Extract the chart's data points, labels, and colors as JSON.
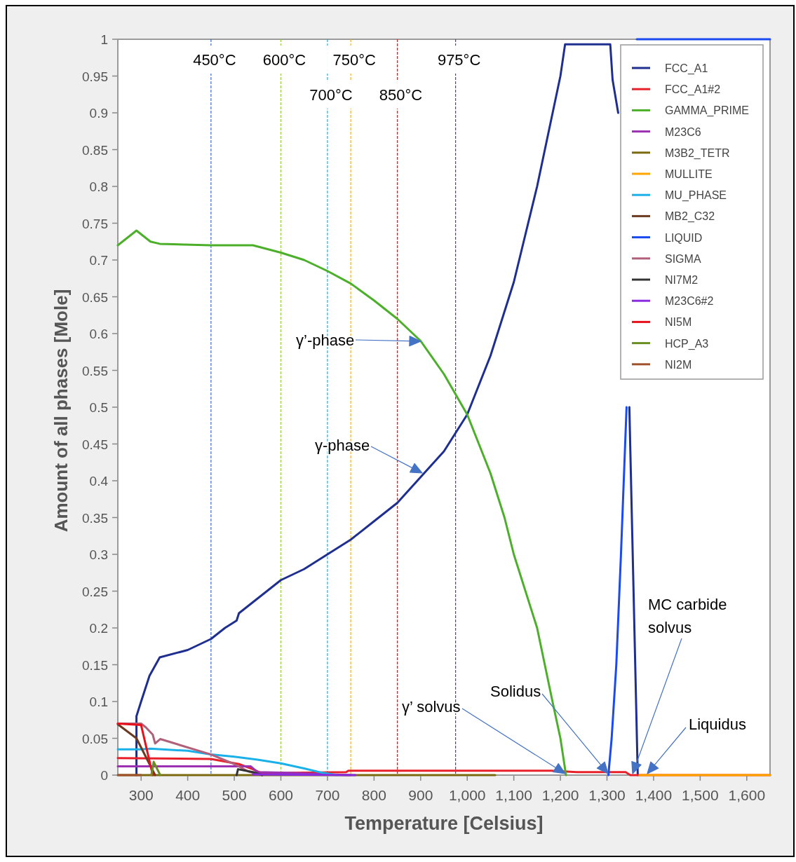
{
  "chart_data": {
    "type": "line",
    "xlabel": "Temperature [Celsius]",
    "ylabel": "Amount of all phases [Mole]",
    "xlim": [
      250,
      1650
    ],
    "ylim": [
      0,
      1
    ],
    "xticks": [
      300,
      400,
      500,
      600,
      700,
      800,
      900,
      {
        "value": 1000,
        "label": "1,000"
      },
      {
        "value": 1100,
        "label": "1,100"
      },
      {
        "value": 1200,
        "label": "1,200"
      },
      {
        "value": 1300,
        "label": "1,300"
      },
      {
        "value": 1400,
        "label": "1,400"
      },
      {
        "value": 1500,
        "label": "1,500"
      },
      {
        "value": 1600,
        "label": "1,600"
      }
    ],
    "yticks": [
      0,
      0.05,
      0.1,
      0.15,
      0.2,
      0.25,
      0.3,
      0.35,
      0.4,
      0.45,
      0.5,
      0.55,
      0.6,
      0.65,
      0.7,
      0.75,
      0.8,
      0.85,
      0.9,
      0.95,
      1
    ],
    "grid": false,
    "legend": "top right",
    "series": [
      {
        "name": "FCC_A1",
        "color": "#1f2f8f",
        "x": [
          290,
          290,
          300,
          318,
          340,
          400,
          450,
          480,
          505,
          510,
          530,
          570,
          600,
          650,
          700,
          750,
          800,
          850,
          900,
          950,
          1000,
          1050,
          1100,
          1150,
          1200,
          1210,
          1307,
          1312,
          1324,
          1330,
          1348,
          1366
        ],
        "values": [
          0,
          0.08,
          0.1,
          0.135,
          0.16,
          0.17,
          0.185,
          0.2,
          0.21,
          0.22,
          0.23,
          0.25,
          0.265,
          0.28,
          0.3,
          0.32,
          0.345,
          0.37,
          0.405,
          0.44,
          0.49,
          0.57,
          0.67,
          0.8,
          0.95,
          0.993,
          0.993,
          0.945,
          0.9,
          null,
          0.5,
          0
        ]
      },
      {
        "name": "FCC_A1#2",
        "color": "#e8202a",
        "x": [
          250,
          450,
          510,
          540,
          560,
          620,
          740,
          745,
          1180,
          1235,
          1340,
          1350,
          1650
        ],
        "values": [
          0.023,
          0.022,
          0.015,
          0.008,
          0.002,
          0.003,
          0.004,
          0.006,
          0.006,
          0.004,
          0.004,
          0,
          0
        ]
      },
      {
        "name": "GAMMA_PRIME",
        "color": "#4caf2a",
        "x": [
          250,
          290,
          320,
          340,
          450,
          530,
          540,
          600,
          650,
          700,
          750,
          800,
          850,
          900,
          950,
          1000,
          1050,
          1080,
          1100,
          1150,
          1183,
          1200,
          1212
        ],
        "values": [
          0.72,
          0.74,
          0.725,
          0.722,
          0.72,
          0.72,
          0.72,
          0.71,
          0.7,
          0.685,
          0.668,
          0.645,
          0.62,
          0.59,
          0.545,
          0.49,
          0.41,
          0.35,
          0.3,
          0.2,
          0.1,
          0.05,
          0
        ]
      },
      {
        "name": "M23C6",
        "color": "#9b30b0",
        "x": [
          250,
          535,
          550,
          620,
          700,
          750
        ],
        "values": [
          0.012,
          0.012,
          0.004,
          0.003,
          0.001,
          0
        ]
      },
      {
        "name": "M3B2_TETR",
        "color": "#7a6a10",
        "x": [
          250,
          1060
        ],
        "values": [
          0,
          0
        ]
      },
      {
        "name": "MULLITE",
        "color": "#ffa500",
        "x": [
          1370,
          1650
        ],
        "values": [
          0,
          0
        ]
      },
      {
        "name": "MU_PHASE",
        "color": "#1ab0e8",
        "x": [
          250,
          300,
          320,
          400,
          450,
          500,
          550,
          600,
          650,
          690,
          720
        ],
        "values": [
          0.035,
          0.035,
          0.036,
          0.033,
          0.028,
          0.025,
          0.021,
          0.016,
          0.009,
          0.003,
          0
        ]
      },
      {
        "name": "MB2_C32",
        "color": "#6b3a20",
        "x": [
          250,
          290,
          330
        ],
        "values": [
          0.069,
          0.05,
          0
        ]
      },
      {
        "name": "LIQUID",
        "color": "#1a4af0",
        "x": [
          1303,
          1310,
          1320,
          1330,
          1342,
          1352,
          1364,
          1650
        ],
        "values": [
          0,
          0.05,
          0.15,
          0.3,
          0.5,
          null,
          1,
          1
        ]
      },
      {
        "name": "SIGMA",
        "color": "#b0607a",
        "x": [
          250,
          300,
          310,
          325,
          330,
          341,
          450,
          500,
          530,
          560
        ],
        "values": [
          0.07,
          0.07,
          0.065,
          0.055,
          0.043,
          0.049,
          0.028,
          0.015,
          0.005,
          0
        ]
      },
      {
        "name": "NI7M2",
        "color": "#333333",
        "x": [
          505,
          508,
          540,
          560
        ],
        "values": [
          0,
          0.008,
          0.004,
          0
        ]
      },
      {
        "name": "M23C6#2",
        "color": "#8a2be2",
        "x": [
          540,
          760
        ],
        "values": [
          0.001,
          0
        ]
      },
      {
        "name": "NI5M",
        "color": "#e8101a",
        "x": [
          250,
          300,
          325
        ],
        "values": [
          0.07,
          0.068,
          0
        ]
      },
      {
        "name": "HCP_A3",
        "color": "#6b8e23",
        "x": [
          322,
          327,
          341
        ],
        "values": [
          0,
          0.018,
          0
        ]
      },
      {
        "name": "NI2M",
        "color": "#a0522d",
        "x": [
          250,
          300
        ],
        "values": [
          0,
          0
        ]
      }
    ],
    "ref_lines": [
      {
        "axis": "x",
        "value": 450,
        "label": "450°C",
        "color": "#3a6ad8",
        "line_style": "dashed"
      },
      {
        "axis": "x",
        "value": 600,
        "label": "600°C",
        "color": "#9acd32",
        "line_style": "dashed"
      },
      {
        "axis": "x",
        "value": 700,
        "label": "700°C",
        "color": "#1ab0e8",
        "line_style": "dashed"
      },
      {
        "axis": "x",
        "value": 750,
        "label": "750°C",
        "color": "#f5b800",
        "line_style": "dashed"
      },
      {
        "axis": "x",
        "value": 850,
        "label": "850°C",
        "color": "#e02020",
        "line_style": "dashed"
      },
      {
        "axis": "x",
        "value": 975,
        "label": "975°C",
        "color": "#7030a0",
        "line_style": "dashed"
      }
    ],
    "annotations": [
      "γ’-phase",
      "γ-phase",
      "γ’ solvus",
      "Solidus",
      "MC carbide solvus",
      "Liquidus"
    ]
  }
}
